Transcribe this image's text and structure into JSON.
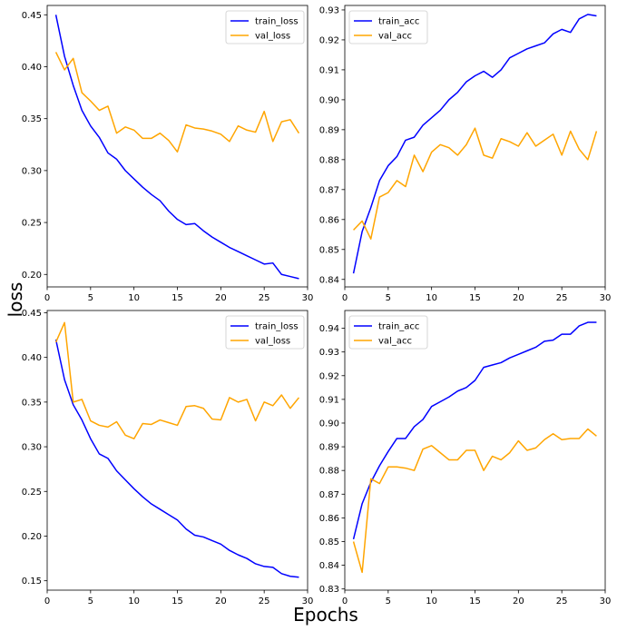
{
  "figure": {
    "xlabel": "Epochs",
    "ylabel": "loss"
  },
  "chart_data": [
    {
      "type": "line",
      "x": [
        1,
        2,
        3,
        4,
        5,
        6,
        7,
        8,
        9,
        10,
        11,
        12,
        13,
        14,
        15,
        16,
        17,
        18,
        19,
        20,
        21,
        22,
        23,
        24,
        25,
        26,
        27,
        28,
        29
      ],
      "series": [
        {
          "name": "train_loss",
          "color": "#0000ff",
          "values": [
            0.45,
            0.41,
            0.382,
            0.358,
            0.343,
            0.332,
            0.317,
            0.311,
            0.3,
            0.292,
            0.284,
            0.277,
            0.271,
            0.261,
            0.253,
            0.248,
            0.249,
            0.242,
            0.236,
            0.231,
            0.226,
            0.222,
            0.218,
            0.214,
            0.21,
            0.211,
            0.2,
            0.198,
            0.196
          ]
        },
        {
          "name": "val_loss",
          "color": "#ffa500",
          "values": [
            0.414,
            0.397,
            0.408,
            0.375,
            0.367,
            0.358,
            0.362,
            0.336,
            0.342,
            0.339,
            0.331,
            0.331,
            0.336,
            0.329,
            0.318,
            0.344,
            0.341,
            0.34,
            0.338,
            0.335,
            0.328,
            0.343,
            0.339,
            0.337,
            0.357,
            0.328,
            0.347,
            0.349,
            0.336
          ]
        }
      ],
      "xlim": [
        0,
        30
      ],
      "ylim": [
        0.188,
        0.459
      ],
      "xticks": [
        0,
        5,
        10,
        15,
        20,
        25,
        30
      ],
      "yticks": [
        0.2,
        0.25,
        0.3,
        0.35,
        0.4,
        0.45
      ],
      "ytick_labels": [
        "0.20",
        "0.25",
        "0.30",
        "0.35",
        "0.40",
        "0.45"
      ],
      "legend": "top-right"
    },
    {
      "type": "line",
      "x": [
        1,
        2,
        3,
        4,
        5,
        6,
        7,
        8,
        9,
        10,
        11,
        12,
        13,
        14,
        15,
        16,
        17,
        18,
        19,
        20,
        21,
        22,
        23,
        24,
        25,
        26,
        27,
        28,
        29
      ],
      "series": [
        {
          "name": "train_acc",
          "color": "#0000ff",
          "values": [
            0.842,
            0.856,
            0.864,
            0.873,
            0.878,
            0.881,
            0.8865,
            0.8875,
            0.8915,
            0.894,
            0.8965,
            0.9,
            0.9025,
            0.906,
            0.908,
            0.9095,
            0.9075,
            0.91,
            0.914,
            0.9155,
            0.917,
            0.918,
            0.919,
            0.922,
            0.9235,
            0.9225,
            0.927,
            0.9285,
            0.928
          ]
        },
        {
          "name": "val_acc",
          "color": "#ffa500",
          "values": [
            0.8565,
            0.8595,
            0.8535,
            0.8675,
            0.869,
            0.873,
            0.871,
            0.8815,
            0.876,
            0.8825,
            0.885,
            0.884,
            0.8815,
            0.885,
            0.8905,
            0.8815,
            0.8805,
            0.887,
            0.886,
            0.8845,
            0.889,
            0.8845,
            0.8865,
            0.8885,
            0.8815,
            0.8895,
            0.8835,
            0.88,
            0.8895
          ]
        }
      ],
      "xlim": [
        0,
        30
      ],
      "ylim": [
        0.8375,
        0.9315
      ],
      "xticks": [
        0,
        5,
        10,
        15,
        20,
        25,
        30
      ],
      "yticks": [
        0.84,
        0.85,
        0.86,
        0.87,
        0.88,
        0.89,
        0.9,
        0.91,
        0.92,
        0.93
      ],
      "ytick_labels": [
        "0.84",
        "0.85",
        "0.86",
        "0.87",
        "0.88",
        "0.89",
        "0.90",
        "0.91",
        "0.92",
        "0.93"
      ],
      "legend": "top-left"
    },
    {
      "type": "line",
      "x": [
        1,
        2,
        3,
        4,
        5,
        6,
        7,
        8,
        9,
        10,
        11,
        12,
        13,
        14,
        15,
        16,
        17,
        18,
        19,
        20,
        21,
        22,
        23,
        24,
        25,
        26,
        27,
        28,
        29
      ],
      "series": [
        {
          "name": "train_loss",
          "color": "#0000ff",
          "values": [
            0.42,
            0.375,
            0.347,
            0.33,
            0.309,
            0.292,
            0.287,
            0.273,
            0.263,
            0.253,
            0.244,
            0.236,
            0.23,
            0.224,
            0.218,
            0.208,
            0.201,
            0.199,
            0.195,
            0.191,
            0.184,
            0.179,
            0.175,
            0.169,
            0.166,
            0.165,
            0.158,
            0.155,
            0.154
          ]
        },
        {
          "name": "val_loss",
          "color": "#ffa500",
          "values": [
            0.417,
            0.439,
            0.35,
            0.353,
            0.329,
            0.324,
            0.322,
            0.328,
            0.313,
            0.309,
            0.326,
            0.325,
            0.33,
            0.327,
            0.324,
            0.345,
            0.346,
            0.343,
            0.331,
            0.33,
            0.355,
            0.35,
            0.353,
            0.329,
            0.35,
            0.346,
            0.358,
            0.343,
            0.355
          ]
        }
      ],
      "xlim": [
        0,
        30
      ],
      "ylim": [
        0.1395,
        0.4525
      ],
      "xticks": [
        0,
        5,
        10,
        15,
        20,
        25,
        30
      ],
      "yticks": [
        0.15,
        0.2,
        0.25,
        0.3,
        0.35,
        0.4,
        0.45
      ],
      "ytick_labels": [
        "0.15",
        "0.20",
        "0.25",
        "0.30",
        "0.35",
        "0.40",
        "0.45"
      ],
      "legend": "top-right"
    },
    {
      "type": "line",
      "x": [
        1,
        2,
        3,
        4,
        5,
        6,
        7,
        8,
        9,
        10,
        11,
        12,
        13,
        14,
        15,
        16,
        17,
        18,
        19,
        20,
        21,
        22,
        23,
        24,
        25,
        26,
        27,
        28,
        29
      ],
      "series": [
        {
          "name": "train_acc",
          "color": "#0000ff",
          "values": [
            0.851,
            0.866,
            0.875,
            0.882,
            0.888,
            0.8935,
            0.8935,
            0.8985,
            0.9015,
            0.907,
            0.909,
            0.911,
            0.9135,
            0.915,
            0.918,
            0.9235,
            0.9245,
            0.9255,
            0.9275,
            0.929,
            0.9305,
            0.932,
            0.9345,
            0.935,
            0.9375,
            0.9375,
            0.941,
            0.9425,
            0.9425
          ]
        },
        {
          "name": "val_acc",
          "color": "#ffa500",
          "values": [
            0.85,
            0.837,
            0.8765,
            0.8745,
            0.8815,
            0.8815,
            0.881,
            0.88,
            0.889,
            0.8905,
            0.8875,
            0.8845,
            0.8845,
            0.8885,
            0.8885,
            0.88,
            0.886,
            0.8845,
            0.8875,
            0.8925,
            0.8885,
            0.8895,
            0.893,
            0.8955,
            0.893,
            0.8935,
            0.8935,
            0.8975,
            0.8945
          ]
        }
      ],
      "xlim": [
        0,
        30
      ],
      "ylim": [
        0.8295,
        0.9475
      ],
      "xticks": [
        0,
        5,
        10,
        15,
        20,
        25,
        30
      ],
      "yticks": [
        0.83,
        0.84,
        0.85,
        0.86,
        0.87,
        0.88,
        0.89,
        0.9,
        0.91,
        0.92,
        0.93,
        0.94
      ],
      "ytick_labels": [
        "0.83",
        "0.84",
        "0.85",
        "0.86",
        "0.87",
        "0.88",
        "0.89",
        "0.90",
        "0.91",
        "0.92",
        "0.93",
        "0.94"
      ],
      "legend": "top-left"
    }
  ]
}
